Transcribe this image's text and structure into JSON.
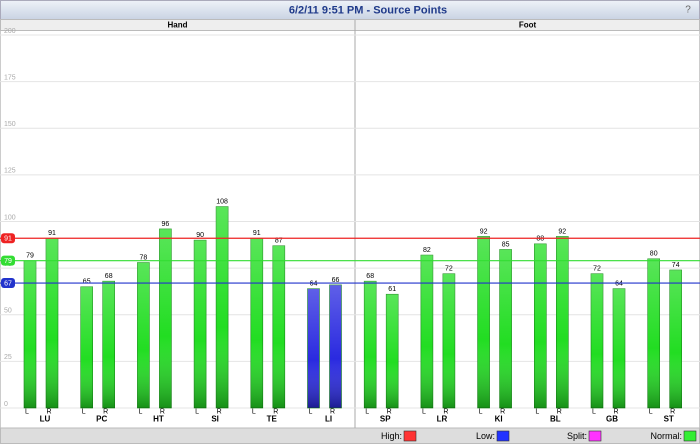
{
  "chart_data": {
    "type": "bar",
    "title": "6/2/11 9:51 PM - Source Points",
    "help": "?",
    "ylim": [
      0,
      200
    ],
    "yticks": [
      0,
      25,
      50,
      75,
      100,
      125,
      150,
      175,
      200
    ],
    "grid": true,
    "reference_lines": [
      {
        "value": 91,
        "color": "#ee2222"
      },
      {
        "value": 79,
        "color": "#33dd33"
      },
      {
        "value": 67,
        "color": "#2233cc"
      }
    ],
    "panels": [
      {
        "title": "Hand",
        "categories": [
          "LU",
          "PC",
          "HT",
          "SI",
          "TE",
          "LI"
        ],
        "series": [
          {
            "name": "L",
            "values": [
              79,
              65,
              78,
              90,
              91,
              64
            ],
            "colors": [
              "#22dd22",
              "#22dd22",
              "#22dd22",
              "#22dd22",
              "#22dd22",
              "#2a2ae0"
            ]
          },
          {
            "name": "R",
            "values": [
              91,
              68,
              96,
              108,
              87,
              66
            ],
            "colors": [
              "#22dd22",
              "#22dd22",
              "#22dd22",
              "#22dd22",
              "#22dd22",
              "#2a2ae0"
            ]
          }
        ]
      },
      {
        "title": "Foot",
        "categories": [
          "SP",
          "LR",
          "KI",
          "BL",
          "GB",
          "ST"
        ],
        "series": [
          {
            "name": "L",
            "values": [
              68,
              82,
              92,
              88,
              72,
              80
            ],
            "colors": [
              "#22dd22",
              "#22dd22",
              "#22dd22",
              "#22dd22",
              "#22dd22",
              "#22dd22"
            ]
          },
          {
            "name": "R",
            "values": [
              61,
              72,
              85,
              92,
              64,
              74
            ],
            "colors": [
              "#22dd22",
              "#22dd22",
              "#22dd22",
              "#22dd22",
              "#22dd22",
              "#22dd22"
            ]
          }
        ]
      }
    ],
    "legend": [
      {
        "label": "High:",
        "color": "#ff3333"
      },
      {
        "label": "Low:",
        "color": "#2233ff"
      },
      {
        "label": "Split:",
        "color": "#ff33ff"
      },
      {
        "label": "Normal:",
        "color": "#33ee33"
      }
    ]
  }
}
